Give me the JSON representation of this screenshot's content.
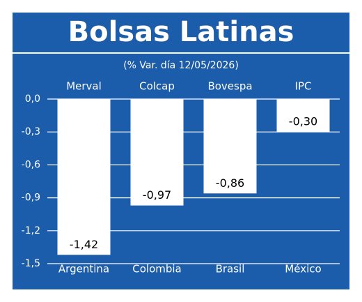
{
  "chart_data": {
    "type": "bar",
    "title": "Bolsas Latinas",
    "subtitle": "(% Var. día 12/05/2026)",
    "categories": [
      "Argentina",
      "Colombia",
      "Brasil",
      "México"
    ],
    "indices": [
      "Merval",
      "Colcap",
      "Bovespa",
      "IPC"
    ],
    "values": [
      -1.42,
      -0.97,
      -0.86,
      -0.3
    ],
    "value_labels": [
      "-1,42",
      "-0,97",
      "-0,86",
      "-0,30"
    ],
    "color": "#ffffff",
    "background": "#1b5cab",
    "ylim": [
      0,
      -1.5
    ],
    "yticks": [
      {
        "value": 0,
        "label": "0,0"
      },
      {
        "value": -0.3,
        "label": "-0,3"
      },
      {
        "value": -0.6,
        "label": "-0,6"
      },
      {
        "value": -0.9,
        "label": "-0,9"
      },
      {
        "value": -1.2,
        "label": "-1,2"
      },
      {
        "value": -1.5,
        "label": "-1,5"
      }
    ],
    "grid": true
  }
}
